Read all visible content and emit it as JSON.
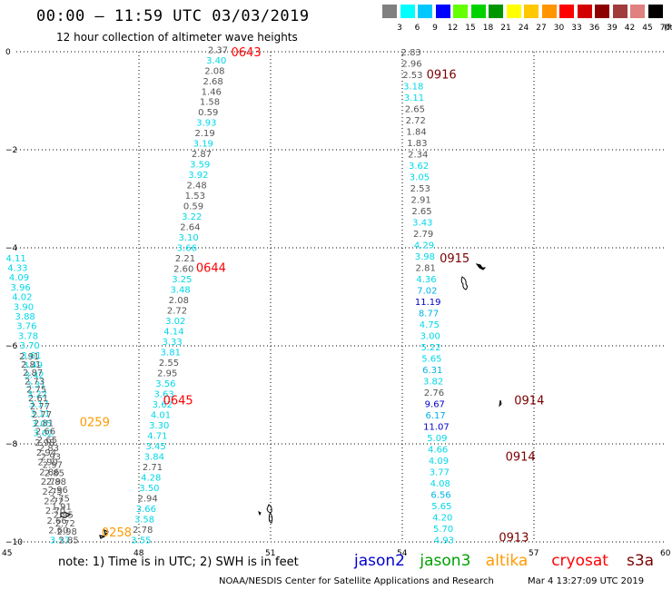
{
  "title": "00:00 – 11:59 UTC 03/03/2019",
  "subtitle": "12 hour collection of altimeter wave heights",
  "color_scale": {
    "labels": [
      "3",
      "6",
      "9",
      "12",
      "15",
      "18",
      "21",
      "24",
      "27",
      "30",
      "33",
      "36",
      "39",
      "42",
      "45",
      "70"
    ],
    "colors": [
      "#808080",
      "#00ffff",
      "#00c8ff",
      "#0000ff",
      "#64ff00",
      "#00d200",
      "#009600",
      "#ffff00",
      "#ffc800",
      "#ff9600",
      "#ff0000",
      "#d20000",
      "#8c0000",
      "#a03c3c",
      "#e08080",
      "#000000"
    ],
    "unit": "(ft)"
  },
  "axes": {
    "lon_ticks": [
      "45",
      "48",
      "51",
      "54",
      "57",
      "60"
    ],
    "lat_ticks": [
      "0",
      "−2",
      "−4",
      "−6",
      "−8",
      "−10"
    ]
  },
  "chart_data": {
    "type": "scatter",
    "x_range": [
      45,
      60
    ],
    "y_range": [
      -10,
      0
    ],
    "grid": true,
    "tracks": [
      {
        "satellite": "cryosat",
        "time_label": "0643",
        "label_lon": 50.1,
        "label_lat": 0.0,
        "start": [
          49.8,
          0.05
        ],
        "end": [
          48.05,
          -9.95
        ],
        "values": [
          "2.37",
          "3.40",
          "2.08",
          "2.68",
          "1.46",
          "1.58",
          "0.59",
          "3.93",
          "2.19",
          "3.19",
          "2.87",
          "3.59",
          "3.92",
          "2.48",
          "1.53",
          "0.59",
          "3.22",
          "2.64",
          "3.10",
          "3.66",
          "2.21",
          "2.60",
          "3.25",
          "3.48",
          "2.08",
          "2.72",
          "3.02",
          "4.14",
          "3.33",
          "3.81",
          "2.55",
          "2.95",
          "3.56",
          "3.63",
          "3.62",
          "4.01",
          "3.30",
          "4.71",
          "3.45",
          "3.84",
          "2.71",
          "4.28",
          "3.50",
          "2.94",
          "3.66",
          "3.58",
          "2.78",
          "3.55"
        ]
      },
      {
        "satellite": "cryosat",
        "time_label": "0644",
        "label_lon": 49.3,
        "label_lat": -4.4
      },
      {
        "satellite": "cryosat",
        "time_label": "0645",
        "label_lon": 48.55,
        "label_lat": -7.1
      },
      {
        "satellite": "s3a",
        "time_label": "0916",
        "label_lon": 54.55,
        "label_lat": -0.45,
        "start": [
          54.2,
          0.0
        ],
        "end": [
          54.95,
          -9.95
        ],
        "values": [
          "2.83",
          "2.96",
          "2.53",
          "3.18",
          "3.11",
          "2.65",
          "2.72",
          "1.84",
          "1.83",
          "2.34",
          "3.62",
          "3.05",
          "2.53",
          "2.91",
          "2.65",
          "3.43",
          "2.79",
          "4.29",
          "3.98",
          "2.81",
          "4.36",
          "7.02",
          "11.19",
          "8.77",
          "4.75",
          "3.00",
          "5.22",
          "5.65",
          "6.31",
          "3.82",
          "2.76",
          "9.67",
          "6.17",
          "11.07",
          "5.09",
          "4.66",
          "4.09",
          "3.77",
          "4.08",
          "6.56",
          "5.65",
          "4.20",
          "5.70",
          "4.93"
        ]
      },
      {
        "satellite": "s3a",
        "time_label": "0915",
        "label_lon": 54.85,
        "label_lat": -4.2
      },
      {
        "satellite": "s3a",
        "time_label": "0914",
        "label_lon": 56.55,
        "label_lat": -7.1
      },
      {
        "satellite": "s3a",
        "time_label": "0914",
        "label_lon": 56.35,
        "label_lat": -8.25
      },
      {
        "satellite": "s3a",
        "time_label": "0913",
        "label_lon": 56.2,
        "label_lat": -9.9
      },
      {
        "satellite": "jason3",
        "start": [
          45.2,
          -4.2
        ],
        "end": [
          46.2,
          -9.95
        ],
        "values": [
          "4.11",
          "4.33",
          "4.09",
          "3.96",
          "4.02",
          "3.90",
          "3.88",
          "3.76",
          "3.78",
          "3.70",
          "3.61",
          "3.49",
          "3.42",
          "3.31",
          "3.22",
          "3.17",
          "3.11",
          "3.05",
          "3.02",
          "2.98",
          "2.94",
          "2.90",
          "2.86",
          "2.79",
          "2.75",
          "2.72",
          "2.70",
          "2.66",
          "2.60",
          "3.57"
        ]
      },
      {
        "satellite": "altika",
        "time_label": "0259",
        "label_lon": 46.65,
        "label_lat": -7.55
      },
      {
        "satellite": "altika",
        "time_label": "0258",
        "label_lon": 47.15,
        "label_lat": -9.8
      },
      {
        "satellite": "jason2",
        "start": [
          45.5,
          -6.2
        ],
        "end": [
          46.4,
          -9.95
        ],
        "values": [
          "2.91",
          "2.81",
          "2.87",
          "2.73",
          "2.75",
          "2.61",
          "2.77",
          "2.77",
          "2.81",
          "2.66",
          "2.65",
          "2.83",
          "2.93",
          "2.97",
          "2.85",
          "2.88",
          "2.96",
          "2.75",
          "1.91",
          "2.95",
          "2.72",
          "2.98",
          "2.85"
        ]
      }
    ]
  },
  "note": "note: 1) Time is in UTC; 2) SWH is in feet",
  "legend": [
    {
      "label": "jason2",
      "color": "#0000d0"
    },
    {
      "label": "jason3",
      "color": "#00a000"
    },
    {
      "label": "altika",
      "color": "#ff9a00"
    },
    {
      "label": "cryosat",
      "color": "#ff0000"
    },
    {
      "label": "s3a",
      "color": "#7a0000"
    }
  ],
  "credit": "NOAA/NESDIS Center for Satellite Applications and Research",
  "timestamp": "Mar  4 13:27:09 UTC 2019"
}
